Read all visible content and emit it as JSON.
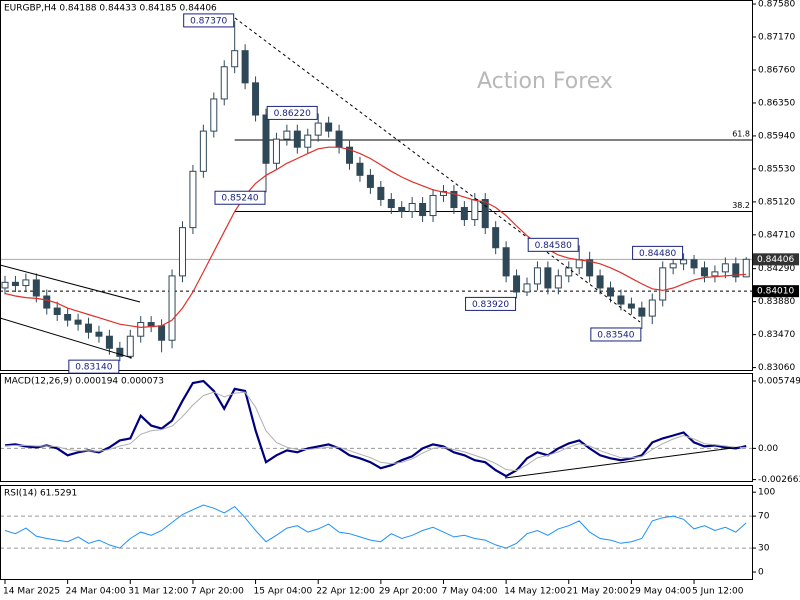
{
  "chart_data": [
    {
      "type": "candlestick",
      "title": "EURGBP,H4  0.84188 0.84433 0.84185 0.84406",
      "watermark": "Action Forex",
      "color": "#2f4858",
      "overlay_color": "#e0302a",
      "ylim": [
        0.8303,
        0.8763
      ],
      "yticks": [
        {
          "value": 0.8758,
          "label": "0.87580"
        },
        {
          "value": 0.8717,
          "label": "0.87170"
        },
        {
          "value": 0.8676,
          "label": "0.86760"
        },
        {
          "value": 0.8635,
          "label": "0.86350"
        },
        {
          "value": 0.8594,
          "label": "0.85940"
        },
        {
          "value": 0.8553,
          "label": "0.85530"
        },
        {
          "value": 0.8512,
          "label": "0.85120"
        },
        {
          "value": 0.8471,
          "label": "0.84710"
        },
        {
          "value": 0.8429,
          "label": "0.84290"
        },
        {
          "value": 0.8388,
          "label": "0.83880"
        },
        {
          "value": 0.8347,
          "label": "0.83470"
        },
        {
          "value": 0.8306,
          "label": "0.83060"
        }
      ],
      "categories": [
        "14 Mar 2025",
        null,
        null,
        null,
        null,
        null,
        "24 Mar 04:00",
        null,
        null,
        null,
        null,
        null,
        "31 Mar 12:00",
        null,
        null,
        null,
        null,
        null,
        "7 Apr 20:00",
        null,
        null,
        null,
        null,
        null,
        "15 Apr 04:00",
        null,
        null,
        null,
        null,
        null,
        "22 Apr 12:00",
        null,
        null,
        null,
        null,
        null,
        "29 Apr 20:00",
        null,
        null,
        null,
        null,
        null,
        "7 May 04:00",
        null,
        null,
        null,
        null,
        null,
        "14 May 12:00",
        null,
        null,
        null,
        null,
        null,
        "21 May 20:00",
        null,
        null,
        null,
        null,
        null,
        "29 May 04:00",
        null,
        null,
        null,
        null,
        null,
        "5 Jun 12:00",
        null,
        null,
        null,
        null,
        null
      ],
      "ohlc": [
        [
          0.8405,
          0.842,
          0.8397,
          0.8412
        ],
        [
          0.8412,
          0.842,
          0.84,
          0.8408
        ],
        [
          0.8408,
          0.8423,
          0.84,
          0.8415
        ],
        [
          0.8415,
          0.8423,
          0.8387,
          0.8395
        ],
        [
          0.8395,
          0.8403,
          0.8372,
          0.838
        ],
        [
          0.838,
          0.8388,
          0.8364,
          0.8372
        ],
        [
          0.8372,
          0.838,
          0.8357,
          0.8365
        ],
        [
          0.8365,
          0.8373,
          0.8352,
          0.836
        ],
        [
          0.836,
          0.8368,
          0.8342,
          0.835
        ],
        [
          0.835,
          0.8358,
          0.8337,
          0.8345
        ],
        [
          0.8345,
          0.8353,
          0.8322,
          0.833
        ],
        [
          0.833,
          0.8338,
          0.8314,
          0.832
        ],
        [
          0.832,
          0.8353,
          0.8317,
          0.8345
        ],
        [
          0.8345,
          0.837,
          0.8337,
          0.8362
        ],
        [
          0.8362,
          0.837,
          0.835,
          0.8358
        ],
        [
          0.8358,
          0.8366,
          0.8325,
          0.834
        ],
        [
          0.834,
          0.8428,
          0.833,
          0.842
        ],
        [
          0.842,
          0.8488,
          0.8412,
          0.848
        ],
        [
          0.848,
          0.8558,
          0.8472,
          0.855
        ],
        [
          0.855,
          0.8608,
          0.8542,
          0.86
        ],
        [
          0.86,
          0.8648,
          0.8592,
          0.864
        ],
        [
          0.864,
          0.8688,
          0.8632,
          0.868
        ],
        [
          0.868,
          0.8737,
          0.8672,
          0.87
        ],
        [
          0.87,
          0.8708,
          0.8652,
          0.866
        ],
        [
          0.866,
          0.8668,
          0.8612,
          0.862
        ],
        [
          0.862,
          0.8628,
          0.8524,
          0.856
        ],
        [
          0.856,
          0.8598,
          0.8552,
          0.859
        ],
        [
          0.859,
          0.8608,
          0.8582,
          0.86
        ],
        [
          0.86,
          0.8608,
          0.8572,
          0.858
        ],
        [
          0.858,
          0.8603,
          0.8572,
          0.8595
        ],
        [
          0.8595,
          0.8622,
          0.8587,
          0.861
        ],
        [
          0.861,
          0.8618,
          0.8592,
          0.86
        ],
        [
          0.86,
          0.8608,
          0.8572,
          0.858
        ],
        [
          0.858,
          0.8588,
          0.8552,
          0.856
        ],
        [
          0.856,
          0.8568,
          0.8537,
          0.8545
        ],
        [
          0.8545,
          0.8553,
          0.8522,
          0.853
        ],
        [
          0.853,
          0.8538,
          0.8507,
          0.8515
        ],
        [
          0.8515,
          0.8523,
          0.8497,
          0.8505
        ],
        [
          0.8505,
          0.8513,
          0.8492,
          0.85
        ],
        [
          0.85,
          0.8518,
          0.8492,
          0.851
        ],
        [
          0.851,
          0.8518,
          0.8487,
          0.8495
        ],
        [
          0.8495,
          0.8528,
          0.8487,
          0.852
        ],
        [
          0.852,
          0.8533,
          0.8512,
          0.8525
        ],
        [
          0.8525,
          0.8533,
          0.8497,
          0.8505
        ],
        [
          0.8505,
          0.8513,
          0.8482,
          0.849
        ],
        [
          0.849,
          0.8523,
          0.8482,
          0.8515
        ],
        [
          0.8515,
          0.8523,
          0.8472,
          0.848
        ],
        [
          0.848,
          0.8488,
          0.8447,
          0.8455
        ],
        [
          0.8455,
          0.8463,
          0.8412,
          0.842
        ],
        [
          0.842,
          0.8428,
          0.8392,
          0.84
        ],
        [
          0.84,
          0.8418,
          0.8395,
          0.841
        ],
        [
          0.841,
          0.8438,
          0.8402,
          0.843
        ],
        [
          0.843,
          0.8438,
          0.8397,
          0.8405
        ],
        [
          0.8405,
          0.8428,
          0.8397,
          0.842
        ],
        [
          0.842,
          0.8438,
          0.8412,
          0.843
        ],
        [
          0.843,
          0.8458,
          0.8422,
          0.844
        ],
        [
          0.844,
          0.845,
          0.8412,
          0.842
        ],
        [
          0.842,
          0.8428,
          0.8397,
          0.8405
        ],
        [
          0.8405,
          0.8413,
          0.8387,
          0.8395
        ],
        [
          0.8395,
          0.8403,
          0.8377,
          0.8385
        ],
        [
          0.8385,
          0.8393,
          0.8372,
          0.838
        ],
        [
          0.838,
          0.8388,
          0.8354,
          0.837
        ],
        [
          0.837,
          0.8398,
          0.836,
          0.839
        ],
        [
          0.839,
          0.8438,
          0.8382,
          0.843
        ],
        [
          0.843,
          0.8443,
          0.8422,
          0.8435
        ],
        [
          0.8435,
          0.8448,
          0.8427,
          0.844
        ],
        [
          0.844,
          0.8446,
          0.8422,
          0.843
        ],
        [
          0.843,
          0.8438,
          0.8412,
          0.842
        ],
        [
          0.842,
          0.8433,
          0.8412,
          0.8425
        ],
        [
          0.8425,
          0.8443,
          0.8417,
          0.8435
        ],
        [
          0.8435,
          0.8443,
          0.8412,
          0.84188
        ],
        [
          0.84188,
          0.84433,
          0.84185,
          0.84406
        ]
      ],
      "overlay_values": [
        0.8398,
        0.8395,
        0.8393,
        0.8392,
        0.839,
        0.8386,
        0.838,
        0.8376,
        0.8372,
        0.8368,
        0.8364,
        0.836,
        0.8358,
        0.8356,
        0.8357,
        0.8358,
        0.8365,
        0.838,
        0.84,
        0.8425,
        0.845,
        0.8475,
        0.85,
        0.852,
        0.8535,
        0.8545,
        0.8552,
        0.856,
        0.8566,
        0.8572,
        0.8578,
        0.858,
        0.858,
        0.8577,
        0.8572,
        0.8566,
        0.8558,
        0.855,
        0.8543,
        0.8537,
        0.8532,
        0.8527,
        0.8524,
        0.8522,
        0.8518,
        0.8514,
        0.8512,
        0.8505,
        0.8495,
        0.8482,
        0.847,
        0.846,
        0.8453,
        0.8446,
        0.8442,
        0.844,
        0.8438,
        0.8435,
        0.843,
        0.8424,
        0.8417,
        0.841,
        0.8404,
        0.8402,
        0.8405,
        0.841,
        0.8415,
        0.8418,
        0.8419,
        0.842,
        0.8421,
        0.8422
      ],
      "fib_levels": [
        {
          "value": 0.8589,
          "label": "61.8"
        },
        {
          "value": 0.85,
          "label": "38.2"
        }
      ],
      "price_lines": [
        {
          "value": 0.84406,
          "label": "0.84406",
          "style": "solid"
        },
        {
          "value": 0.8401,
          "label": "0.84010",
          "style": "dashed"
        }
      ],
      "annotations": [
        {
          "value": 0.8737,
          "label": "0.87370"
        },
        {
          "value": 0.8622,
          "label": "0.86220"
        },
        {
          "value": 0.8524,
          "label": "0.85240"
        },
        {
          "value": 0.8314,
          "label": "0.83140"
        },
        {
          "value": 0.8392,
          "label": "0.83920"
        },
        {
          "value": 0.8458,
          "label": "0.84580"
        },
        {
          "value": 0.8354,
          "label": "0.83540"
        },
        {
          "value": 0.8448,
          "label": "0.84480"
        }
      ]
    },
    {
      "type": "line",
      "title": "MACD(12,26,9) 0.000194 0.000073",
      "ylim": [
        -0.00287,
        0.00643
      ],
      "yticks": [
        0.005749,
        {
          "value": 0,
          "label": "0.00"
        },
        -0.002663
      ],
      "levels": [
        0
      ],
      "series": [
        {
          "color": "#00007f",
          "values": [
            0.00025,
            0.00034,
            0.00017,
            8e-05,
            0.00025,
            0,
            -0.00059,
            -0.00034,
            -0.00017,
            -0.00034,
            8e-05,
            0.00068,
            0.00085,
            0.00279,
            0.00194,
            0.00169,
            0.00237,
            0.00406,
            0.00558,
            0.00575,
            0.0049,
            0.00338,
            0.00507,
            0.0049,
            0.00152,
            -0.00118,
            -0.00059,
            -0.00017,
            -0.00034,
            0,
            0.00017,
            0.00034,
            0,
            -0.00059,
            -0.00085,
            -0.00118,
            -0.00169,
            -0.00144,
            -0.00101,
            -0.00068,
            0,
            0.00034,
            0.00017,
            -0.00034,
            -0.00059,
            -0.00101,
            -0.00118,
            -0.00186,
            -0.00237,
            -0.00186,
            -0.00085,
            -0.00034,
            -0.00059,
            0,
            0.00042,
            0.00068,
            0,
            -0.00059,
            -0.00085,
            -0.00101,
            -0.00085,
            -0.00059,
            0.00051,
            0.00085,
            0.0011,
            0.00135,
            0.00051,
            0.00017,
            0.00025,
            8e-05,
            0,
            0.000194
          ]
        },
        {
          "color": "#b0b0b0",
          "values": [
            0.0002,
            0.00025,
            0.00025,
            0.0002,
            0.0002,
            0.00015,
            -0.0001,
            -0.0002,
            -0.0002,
            -0.00025,
            -0.0001,
            0.0002,
            0.0004,
            0.0012,
            0.0015,
            0.0016,
            0.0019,
            0.0027,
            0.0037,
            0.0045,
            0.0048,
            0.0044,
            0.0047,
            0.0048,
            0.0035,
            0.0015,
            0.0005,
            0.0001,
            -0.0001,
            -0.0001,
            0,
            0.0001,
            0.0001,
            -0.0002,
            -0.0005,
            -0.0008,
            -0.0012,
            -0.0013,
            -0.0012,
            -0.0009,
            -0.0004,
            0,
            0.0001,
            -0.0001,
            -0.0003,
            -0.0006,
            -0.0009,
            -0.0013,
            -0.0018,
            -0.0019,
            -0.0014,
            -0.0008,
            -0.0006,
            -0.0003,
            0.0001,
            0.0004,
            0.0002,
            -0.0002,
            -0.0005,
            -0.0008,
            -0.0008,
            -0.0007,
            -0.0001,
            0.0004,
            0.0008,
            0.0011,
            0.0008,
            0.0004,
            0.0003,
            0.0002,
            0.0001,
            7.3e-05
          ]
        }
      ]
    },
    {
      "type": "line",
      "title": "RSI(14) 61.5291",
      "ylim": [
        -10,
        109
      ],
      "yticks": [
        100,
        70,
        30,
        0
      ],
      "levels": [
        70,
        30
      ],
      "series": [
        {
          "color": "#1e90ff",
          "values": [
            52,
            48,
            55,
            45,
            42,
            40,
            38,
            44,
            36,
            40,
            34,
            30,
            42,
            50,
            46,
            52,
            62,
            72,
            78,
            84,
            80,
            74,
            82,
            68,
            52,
            38,
            46,
            55,
            58,
            50,
            54,
            60,
            50,
            48,
            44,
            40,
            38,
            48,
            42,
            46,
            52,
            56,
            50,
            44,
            46,
            42,
            40,
            34,
            30,
            36,
            48,
            52,
            46,
            54,
            58,
            64,
            50,
            42,
            40,
            36,
            38,
            42,
            64,
            68,
            70,
            66,
            54,
            58,
            52,
            56,
            50,
            61.5291
          ]
        }
      ]
    }
  ]
}
